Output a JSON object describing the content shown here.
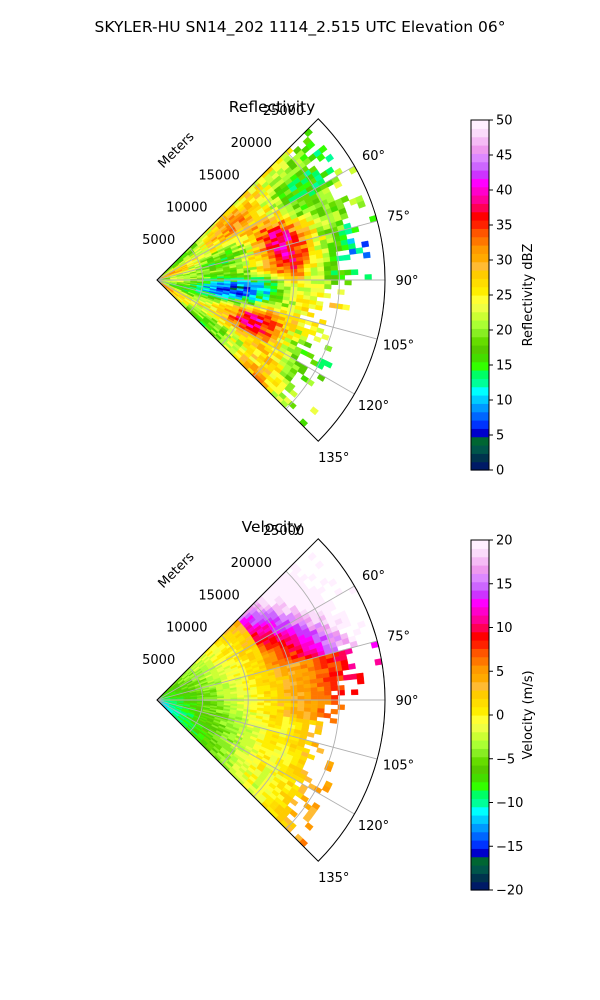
{
  "figure_title": "SKYLER-HU  SN14_202  1114_2.515 UTC Elevation 06°",
  "chart_data": [
    {
      "type": "heatmap",
      "projection": "polar",
      "title": "Reflectivity",
      "radial_axis_label": "Meters",
      "radial_ticks": [
        5000,
        10000,
        15000,
        20000,
        25000
      ],
      "radial_tick_labels": [
        "5000",
        "10000",
        "15000",
        "20000",
        "25000"
      ],
      "angular_ticks": [
        60,
        75,
        90,
        105,
        120,
        135
      ],
      "angular_tick_labels": [
        "60°",
        "75°",
        "90°",
        "105°",
        "120°",
        "135°"
      ],
      "azimuth_range_deg": [
        45,
        135
      ],
      "range_max_m": 25000,
      "grid": true,
      "colorbar": {
        "label": "Reflectivity dBZ",
        "range": [
          0,
          50
        ],
        "ticks": [
          0,
          5,
          10,
          15,
          20,
          25,
          30,
          35,
          40,
          45,
          50
        ],
        "tick_labels": [
          "0",
          "5",
          "10",
          "15",
          "20",
          "25",
          "30",
          "35",
          "40",
          "45",
          "50"
        ],
        "colors": [
          "#001a66",
          "#00334d",
          "#00554a",
          "#006633",
          "#0000cc",
          "#0033ff",
          "#0066ff",
          "#0099ff",
          "#00ccff",
          "#00ffff",
          "#00ff99",
          "#00ff66",
          "#33ff00",
          "#44dd00",
          "#55cc00",
          "#66dd00",
          "#88ee22",
          "#aaff33",
          "#ccff33",
          "#eeff44",
          "#ffff33",
          "#ffee00",
          "#ffdd00",
          "#ffcc00",
          "#ffbb33",
          "#ffaa00",
          "#ff9900",
          "#ff7700",
          "#ff5500",
          "#ff2200",
          "#ff0000",
          "#ff0055",
          "#ff0099",
          "#ff00cc",
          "#ff00ff",
          "#cc33ff",
          "#cc66ff",
          "#dd88ff",
          "#ee99ee",
          "#f5bbf5",
          "#fadcfa",
          "#fff0ff"
        ]
      }
    },
    {
      "type": "heatmap",
      "projection": "polar",
      "title": "Velocity",
      "radial_axis_label": "Meters",
      "radial_ticks": [
        5000,
        10000,
        15000,
        20000,
        25000
      ],
      "radial_tick_labels": [
        "5000",
        "10000",
        "15000",
        "20000",
        "25000"
      ],
      "angular_ticks": [
        60,
        75,
        90,
        105,
        120,
        135
      ],
      "angular_tick_labels": [
        "60°",
        "75°",
        "90°",
        "105°",
        "120°",
        "135°"
      ],
      "azimuth_range_deg": [
        45,
        135
      ],
      "range_max_m": 25000,
      "grid": true,
      "colorbar": {
        "label": "Velocity (m/s)",
        "range": [
          -20,
          20
        ],
        "ticks": [
          -20,
          -15,
          -10,
          -5,
          0,
          5,
          10,
          15,
          20
        ],
        "tick_labels": [
          "−20",
          "−15",
          "−10",
          "−5",
          "0",
          "5",
          "10",
          "15",
          "20"
        ],
        "colors": [
          "#001a66",
          "#00334d",
          "#00554a",
          "#006633",
          "#0000cc",
          "#0033ff",
          "#0066ff",
          "#0099ff",
          "#00ccff",
          "#00ffff",
          "#00ff99",
          "#00ff66",
          "#33ff00",
          "#44dd00",
          "#55cc00",
          "#66dd00",
          "#88ee22",
          "#aaff33",
          "#ccff33",
          "#eeff44",
          "#ffff33",
          "#ffee00",
          "#ffdd00",
          "#ffcc00",
          "#ffbb33",
          "#ffaa00",
          "#ff9900",
          "#ff7700",
          "#ff5500",
          "#ff2200",
          "#ff0000",
          "#ff0055",
          "#ff0099",
          "#ff00cc",
          "#ff00ff",
          "#cc33ff",
          "#cc66ff",
          "#dd88ff",
          "#ee99ee",
          "#f5bbf5",
          "#fadcfa",
          "#fff0ff"
        ]
      }
    }
  ]
}
